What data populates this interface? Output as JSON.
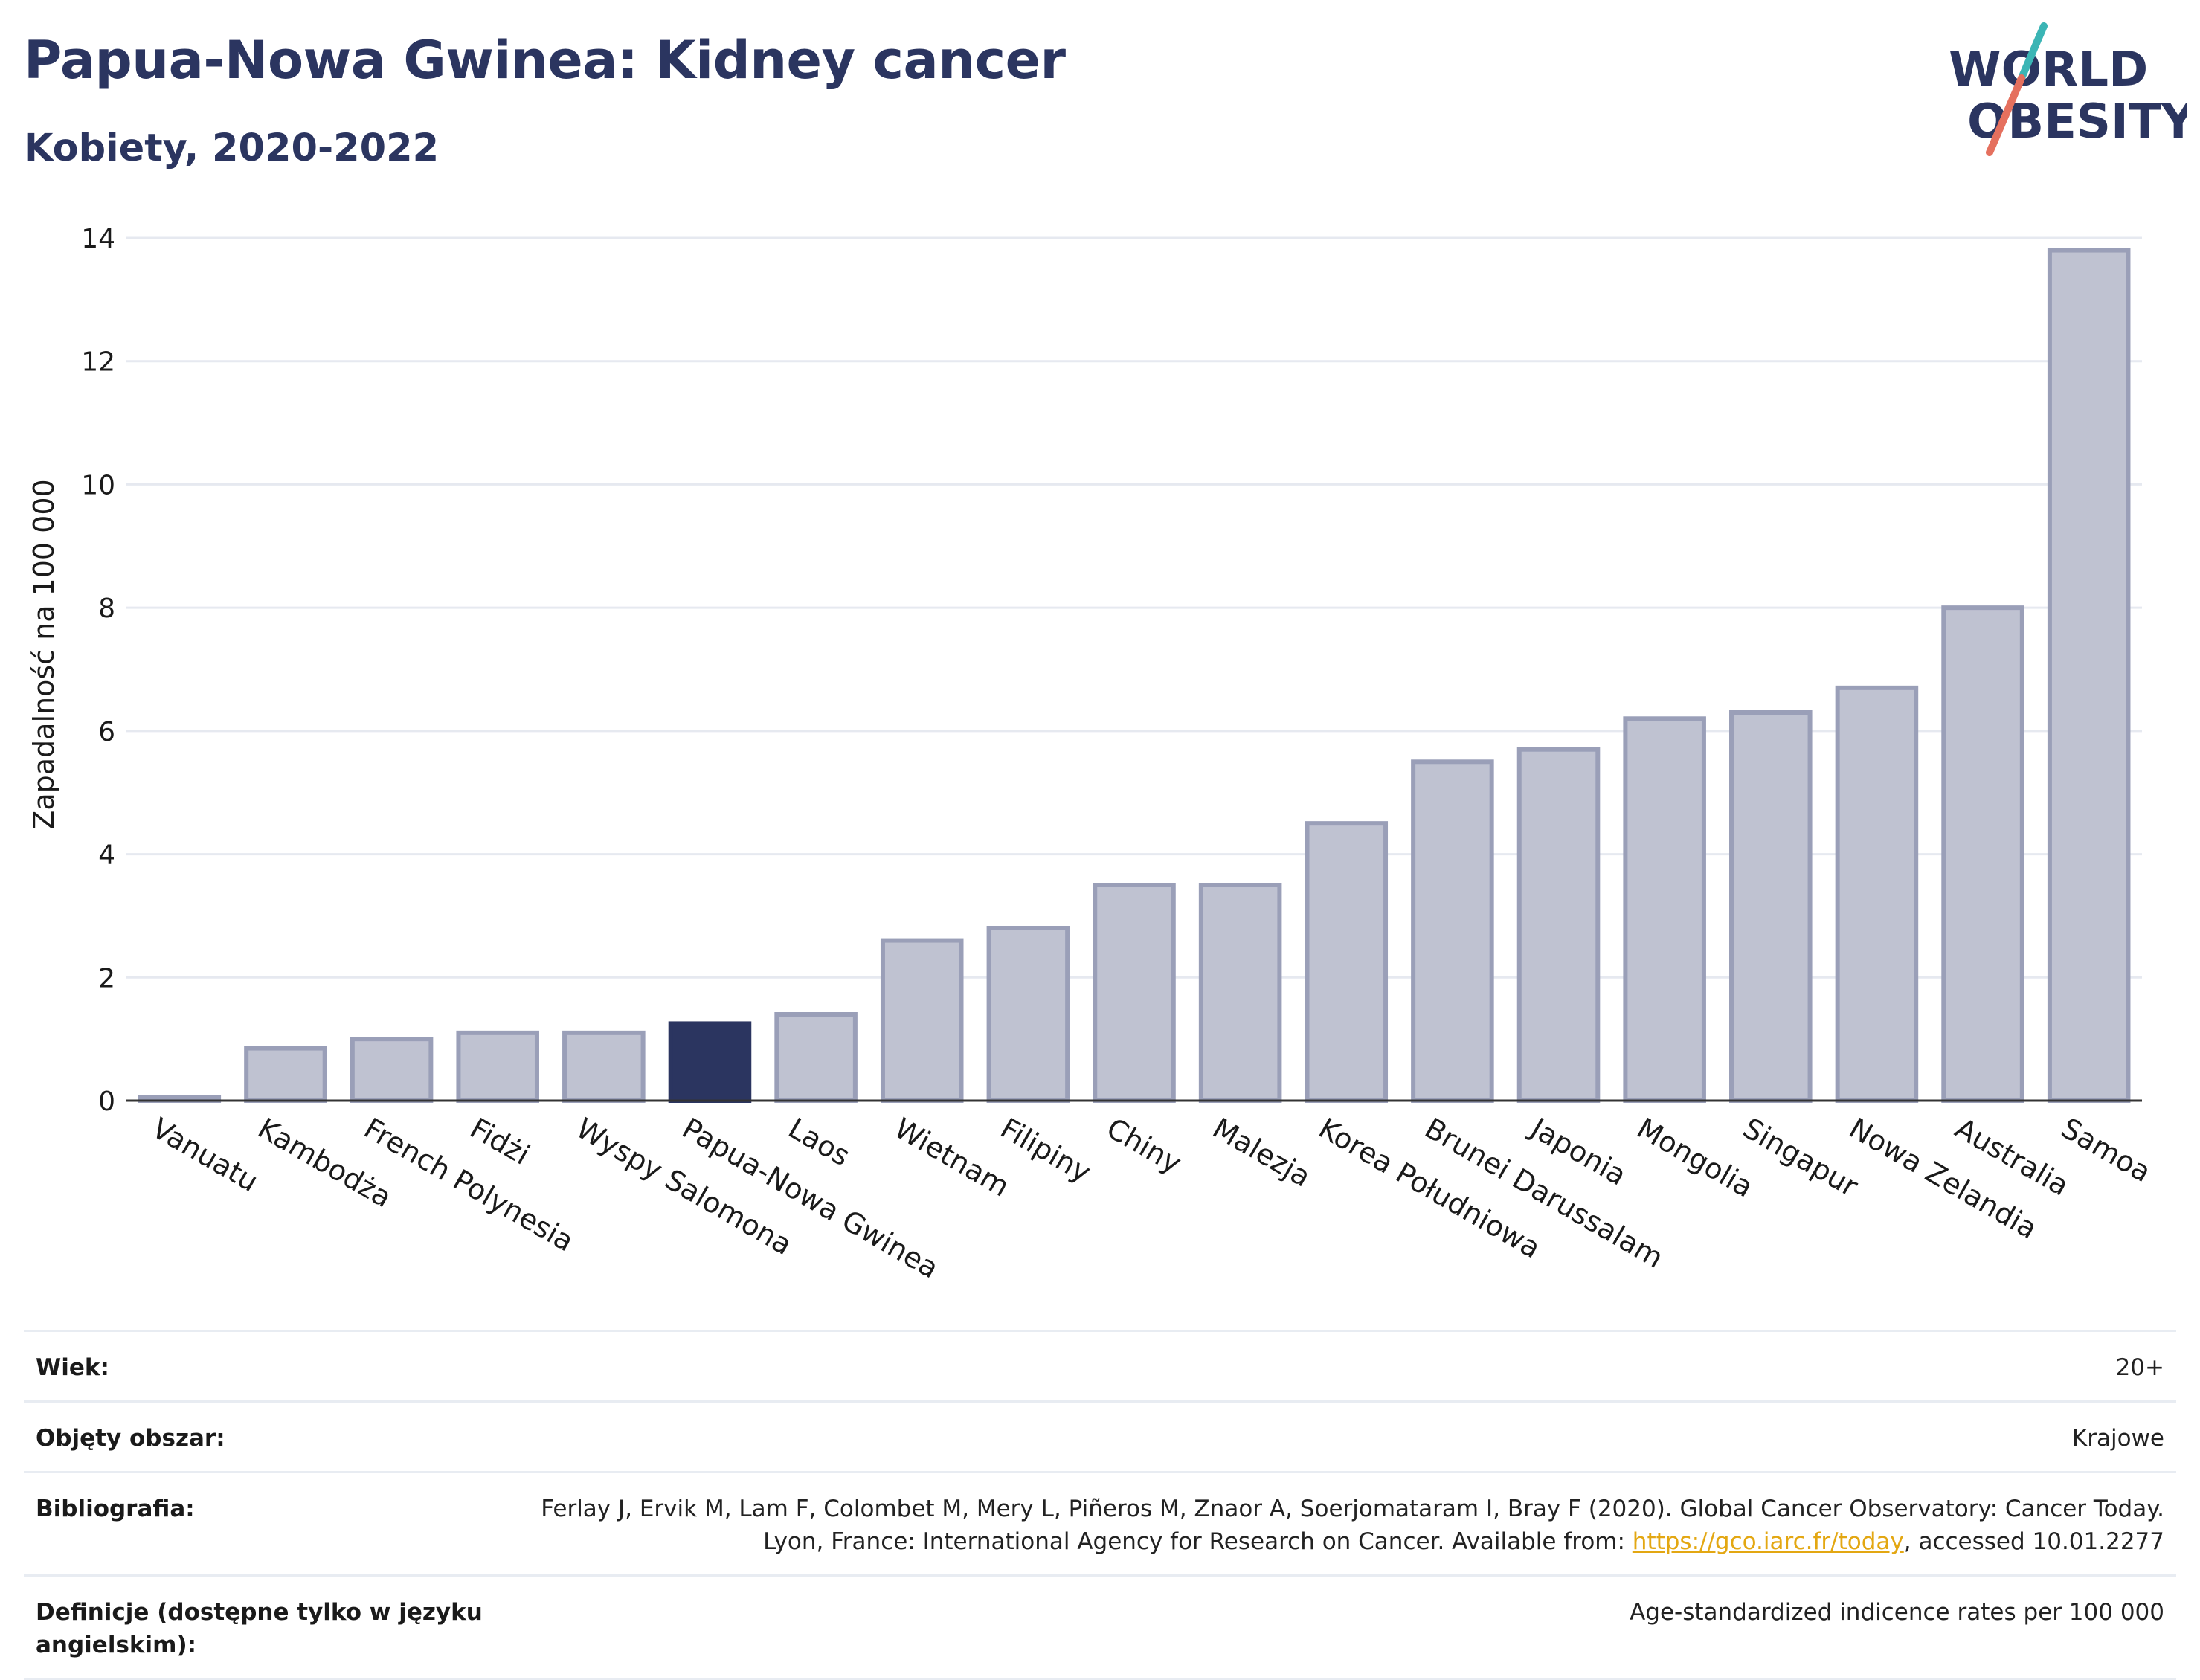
{
  "header": {
    "title": "Papua-Nowa Gwinea: Kidney cancer",
    "subtitle": "Kobiety, 2020-2022"
  },
  "logo": {
    "line1": "WORLD",
    "line2": "OBESITY",
    "colors": {
      "text": "#2b3560",
      "slash_red": "#e5705e",
      "slash_teal": "#3bb5b5"
    }
  },
  "colors": {
    "bar": "#bfc2d1",
    "bar_stroke": "#9a9fb8",
    "highlight": "#2b3560",
    "grid": "#e6e9f0",
    "axis": "#333333"
  },
  "chart_data": {
    "type": "bar",
    "ylabel": "Zapadalność na 100 000",
    "ylim": [
      0,
      14
    ],
    "yticks": [
      0,
      2,
      4,
      6,
      8,
      10,
      12,
      14
    ],
    "grid": true,
    "highlight": "Papua-Nowa Gwinea",
    "categories": [
      "Vanuatu",
      "Kambodża",
      "French Polynesia",
      "Fidżi",
      "Wyspy Salomona",
      "Papua-Nowa Gwinea",
      "Laos",
      "Wietnam",
      "Filipiny",
      "Chiny",
      "Malezja",
      "Korea Południowa",
      "Brunei Darussalam",
      "Japonia",
      "Mongolia",
      "Singapur",
      "Nowa Zelandia",
      "Australia",
      "Samoa"
    ],
    "values": [
      0.05,
      0.85,
      1.0,
      1.1,
      1.1,
      1.25,
      1.4,
      2.6,
      2.8,
      3.5,
      3.5,
      4.5,
      5.5,
      5.7,
      6.2,
      6.3,
      6.7,
      8.0,
      13.8
    ]
  },
  "meta": {
    "age_label": "Wiek:",
    "age_value": "20+",
    "area_label": "Objęty obszar:",
    "area_value": "Krajowe",
    "bib_label": "Bibliografia:",
    "bib_text_1": "Ferlay J, Ervik M, Lam F, Colombet M, Mery L, Piñeros M, Znaor A, Soerjomataram I, Bray F (2020). Global Cancer Observatory: Cancer Today. Lyon, France: International Agency for Research on Cancer. Available from: ",
    "bib_link": "https://gco.iarc.fr/today",
    "bib_text_2": ", accessed 10.01.2277",
    "def_label": "Definicje (dostępne tylko w języku angielskim):",
    "def_value": "Age-standardized indicence rates per 100 000"
  }
}
